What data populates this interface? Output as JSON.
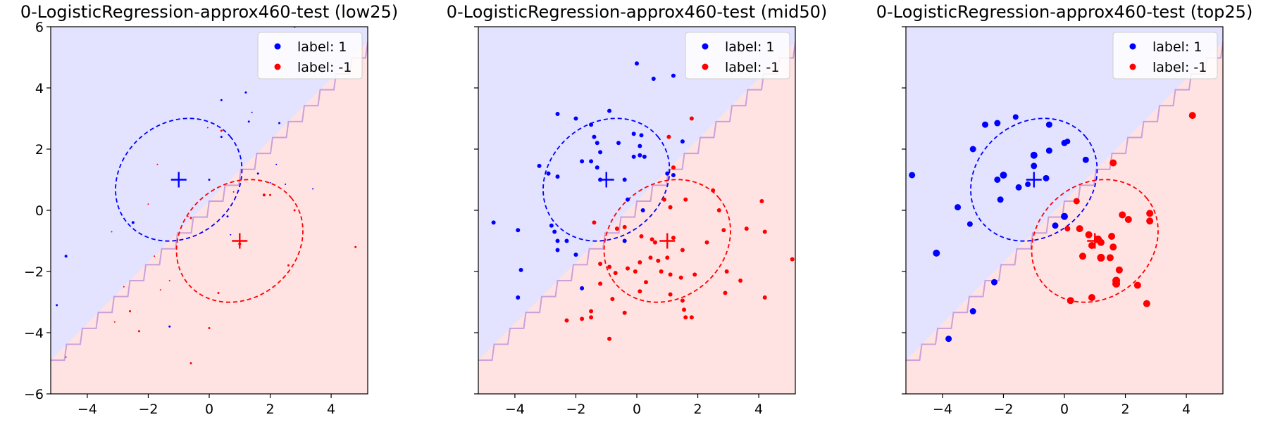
{
  "colors": {
    "positive": "#0000ff",
    "negative": "#ff0000",
    "positive_region": "#e3e3ff",
    "negative_region": "#ffe3e3",
    "boundary": "#c9a0dc"
  },
  "chart_data": [
    {
      "type": "scatter",
      "title": "0-LogisticRegression-approx460-test (low25)",
      "xlim": [
        -5.2,
        5.2
      ],
      "ylim": [
        -6,
        6
      ],
      "xticks": [
        "−4",
        "−2",
        "0",
        "2",
        "4"
      ],
      "yticks": [
        "−6",
        "−4",
        "−2",
        "0",
        "2",
        "4",
        "6"
      ],
      "legend": {
        "position": "top-right",
        "entries": [
          "label: 1",
          "label: -1"
        ]
      },
      "centers": [
        {
          "label": "1",
          "x": -1,
          "y": 1
        },
        {
          "label": "-1",
          "x": 1,
          "y": -1
        }
      ],
      "series": [
        {
          "name": "label: 1",
          "points": [
            [
              -2.5,
              -0.4,
              2
            ],
            [
              -4.7,
              -1.5,
              2
            ],
            [
              -5.0,
              -3.1,
              1.5
            ],
            [
              0.0,
              1.0,
              1.5
            ],
            [
              0.4,
              3.6,
              1.5
            ],
            [
              0.4,
              2.4,
              1.5
            ],
            [
              1.4,
              3.2,
              1
            ],
            [
              2.3,
              2.85,
              1.5
            ],
            [
              1.3,
              2.9,
              1.5
            ],
            [
              1.2,
              3.85,
              1.5
            ],
            [
              2.8,
              6.0,
              1.5
            ],
            [
              1.6,
              1.2,
              1.5
            ],
            [
              2.2,
              1.5,
              1
            ],
            [
              2.0,
              0.9,
              1
            ],
            [
              2.5,
              0.85,
              1
            ],
            [
              3.4,
              0.7,
              1
            ],
            [
              0.6,
              -0.2,
              1.5
            ],
            [
              -1.3,
              -3.8,
              1.5
            ],
            [
              1.0,
              -1.0,
              1.5
            ],
            [
              0.7,
              -0.8,
              1
            ]
          ]
        },
        {
          "name": "label: -1",
          "points": [
            [
              0.4,
              2.6,
              1.5
            ],
            [
              -0.05,
              2.7,
              1
            ],
            [
              -1.7,
              1.5,
              1
            ],
            [
              -2.0,
              0.2,
              1
            ],
            [
              -0.6,
              -0.25,
              1.5
            ],
            [
              -3.2,
              -0.7,
              1
            ],
            [
              -1.8,
              -1.5,
              1
            ],
            [
              -1.3,
              -2.3,
              1
            ],
            [
              -1.6,
              -2.6,
              1
            ],
            [
              -2.8,
              -2.5,
              1
            ],
            [
              -2.6,
              -3.3,
              1.5
            ],
            [
              -3.1,
              -3.65,
              1
            ],
            [
              -2.3,
              -3.95,
              1.5
            ],
            [
              -4.7,
              -4.8,
              1
            ],
            [
              -0.6,
              -5.0,
              1.5
            ],
            [
              0.0,
              -3.85,
              1.5
            ],
            [
              1.0,
              -1.1,
              2
            ],
            [
              1.8,
              0.5,
              2
            ],
            [
              2.0,
              0.5,
              1.5
            ],
            [
              2.8,
              0.0,
              1.5
            ],
            [
              0.8,
              0.6,
              1
            ],
            [
              2.6,
              -1.8,
              1.5
            ],
            [
              0.3,
              -2.7,
              1.5
            ],
            [
              4.8,
              -1.2,
              1.5
            ],
            [
              -0.7,
              -0.2,
              1
            ]
          ]
        }
      ]
    },
    {
      "type": "scatter",
      "title": "0-LogisticRegression-approx460-test (mid50)",
      "xlim": [
        -5.2,
        5.2
      ],
      "ylim": [
        -6,
        6
      ],
      "xticks": [
        "−4",
        "−2",
        "0",
        "2",
        "4"
      ],
      "yticks": [],
      "legend": {
        "position": "top-right",
        "entries": [
          "label: 1",
          "label: -1"
        ]
      },
      "centers": [
        {
          "label": "1",
          "x": -1,
          "y": 1
        },
        {
          "label": "-1",
          "x": 1,
          "y": -1
        }
      ],
      "series": [
        {
          "name": "label: 1",
          "points": [
            [
              0.0,
              4.8,
              3
            ],
            [
              0.55,
              4.3,
              3
            ],
            [
              1.2,
              4.4,
              3
            ],
            [
              -2.6,
              3.15,
              3
            ],
            [
              -0.9,
              3.25,
              3
            ],
            [
              -2.0,
              3.0,
              3
            ],
            [
              -1.5,
              2.8,
              3
            ],
            [
              -1.4,
              2.4,
              3
            ],
            [
              -1.3,
              2.2,
              3
            ],
            [
              -0.6,
              2.2,
              3
            ],
            [
              -0.1,
              2.5,
              3
            ],
            [
              0.15,
              2.45,
              3
            ],
            [
              0.1,
              2.1,
              3
            ],
            [
              1.5,
              2.25,
              3
            ],
            [
              -3.2,
              1.45,
              3
            ],
            [
              -2.9,
              1.2,
              3
            ],
            [
              -2.6,
              1.1,
              3
            ],
            [
              -1.8,
              1.6,
              3
            ],
            [
              -1.5,
              1.6,
              3
            ],
            [
              -1.2,
              1.9,
              3
            ],
            [
              -1.3,
              1.4,
              3
            ],
            [
              -0.1,
              1.75,
              3
            ],
            [
              0.1,
              1.8,
              3
            ],
            [
              0.25,
              1.75,
              3
            ],
            [
              -1.2,
              1.0,
              3
            ],
            [
              -0.4,
              1.0,
              3
            ],
            [
              1.0,
              1.2,
              3
            ],
            [
              1.2,
              1.15,
              3
            ],
            [
              -4.7,
              -0.4,
              3
            ],
            [
              -3.9,
              -0.65,
              3
            ],
            [
              -3.8,
              -1.95,
              3
            ],
            [
              -3.9,
              -2.85,
              3
            ],
            [
              -2.8,
              -0.5,
              3
            ],
            [
              -2.7,
              -0.7,
              3
            ],
            [
              -2.6,
              -1.0,
              3
            ],
            [
              -2.3,
              -1.0,
              3
            ],
            [
              -2.6,
              -1.3,
              3
            ],
            [
              -2.0,
              -1.45,
              3
            ],
            [
              -1.8,
              -2.55,
              3
            ],
            [
              -0.3,
              0.35,
              3
            ],
            [
              0.2,
              0.0,
              3
            ],
            [
              -0.4,
              -1.0,
              3
            ]
          ]
        },
        {
          "name": "label: -1",
          "points": [
            [
              1.05,
              2.4,
              3
            ],
            [
              1.8,
              3.0,
              3
            ],
            [
              1.2,
              1.4,
              3
            ],
            [
              2.5,
              0.65,
              3
            ],
            [
              1.6,
              0.35,
              3
            ],
            [
              0.9,
              0.35,
              3
            ],
            [
              2.7,
              0.0,
              3
            ],
            [
              1.1,
              0.1,
              3
            ],
            [
              4.1,
              0.3,
              3
            ],
            [
              4.2,
              -0.7,
              3
            ],
            [
              3.6,
              -0.6,
              3
            ],
            [
              2.85,
              -0.65,
              3
            ],
            [
              -0.4,
              -0.55,
              3
            ],
            [
              0.15,
              -0.85,
              3
            ],
            [
              0.5,
              -0.95,
              3
            ],
            [
              0.6,
              -1.05,
              3
            ],
            [
              1.2,
              -0.9,
              3
            ],
            [
              2.3,
              -1.05,
              3
            ],
            [
              1.5,
              -1.3,
              3
            ],
            [
              5.1,
              -1.6,
              3
            ],
            [
              -1.2,
              -1.75,
              3
            ],
            [
              -0.9,
              -1.85,
              3
            ],
            [
              -0.7,
              -2.05,
              3
            ],
            [
              -0.3,
              -1.9,
              3
            ],
            [
              0.1,
              -1.7,
              3
            ],
            [
              0.45,
              -1.55,
              3
            ],
            [
              0.7,
              -1.65,
              3
            ],
            [
              1.0,
              -1.55,
              3
            ],
            [
              -0.05,
              -2.0,
              3
            ],
            [
              0.3,
              -2.35,
              3
            ],
            [
              0.8,
              -2.0,
              3
            ],
            [
              1.1,
              -2.1,
              3
            ],
            [
              1.45,
              -2.2,
              3
            ],
            [
              1.9,
              -2.1,
              3
            ],
            [
              2.95,
              -2.0,
              3
            ],
            [
              3.4,
              -2.3,
              3
            ],
            [
              2.9,
              -2.7,
              3
            ],
            [
              -1.2,
              -2.4,
              3
            ],
            [
              -0.8,
              -2.9,
              3
            ],
            [
              0.1,
              -2.65,
              3
            ],
            [
              1.1,
              -2.75,
              3
            ],
            [
              1.5,
              -2.95,
              3
            ],
            [
              1.55,
              -3.25,
              3
            ],
            [
              -1.5,
              -3.3,
              3
            ],
            [
              -0.4,
              -3.35,
              3
            ],
            [
              -1.5,
              -3.5,
              3
            ],
            [
              -2.3,
              -3.6,
              3
            ],
            [
              -1.8,
              -3.55,
              3
            ],
            [
              1.6,
              -3.5,
              3
            ],
            [
              1.8,
              -3.5,
              3
            ],
            [
              -0.9,
              -4.2,
              3
            ],
            [
              4.2,
              -2.85,
              3
            ],
            [
              -1.4,
              -0.4,
              3
            ],
            [
              -0.65,
              -0.6,
              3
            ]
          ]
        }
      ]
    },
    {
      "type": "scatter",
      "title": "0-LogisticRegression-approx460-test (top25)",
      "xlim": [
        -5.2,
        5.2
      ],
      "ylim": [
        -6,
        6
      ],
      "xticks": [
        "−4",
        "−2",
        "0",
        "2",
        "4"
      ],
      "yticks": [],
      "legend": {
        "position": "top-right",
        "entries": [
          "label: 1",
          "label: -1"
        ]
      },
      "centers": [
        {
          "label": "1",
          "x": -1,
          "y": 1
        },
        {
          "label": "-1",
          "x": 1,
          "y": -1
        }
      ],
      "series": [
        {
          "name": "label: 1",
          "points": [
            [
              -5.0,
              1.15,
              4.5
            ],
            [
              -2.6,
              2.8,
              4.5
            ],
            [
              -2.2,
              2.85,
              4.5
            ],
            [
              -1.6,
              3.05,
              4
            ],
            [
              -0.5,
              2.8,
              4.5
            ],
            [
              -3.0,
              2.0,
              4.5
            ],
            [
              -1.0,
              1.8,
              5
            ],
            [
              -0.5,
              1.95,
              4.5
            ],
            [
              0.0,
              2.2,
              4.5
            ],
            [
              0.1,
              2.25,
              4
            ],
            [
              0.7,
              1.65,
              4.5
            ],
            [
              -2.0,
              1.15,
              5
            ],
            [
              -2.2,
              1.0,
              4.5
            ],
            [
              -1.5,
              0.75,
              4.5
            ],
            [
              -1.2,
              0.85,
              4
            ],
            [
              -1.0,
              1.45,
              4.5
            ],
            [
              -0.6,
              1.05,
              4.5
            ],
            [
              -2.1,
              0.35,
              4.5
            ],
            [
              -3.5,
              0.1,
              4.5
            ],
            [
              -3.1,
              -0.45,
              4
            ],
            [
              -0.3,
              -0.5,
              4.5
            ],
            [
              0.0,
              -0.2,
              5
            ],
            [
              -4.2,
              -1.4,
              5
            ],
            [
              -2.3,
              -2.35,
              4.5
            ],
            [
              -3.0,
              -3.3,
              4.5
            ],
            [
              -3.8,
              -4.2,
              4.5
            ]
          ]
        },
        {
          "name": "label: -1",
          "points": [
            [
              4.2,
              3.1,
              5
            ],
            [
              1.6,
              1.55,
              5
            ],
            [
              0.4,
              0.3,
              4.5
            ],
            [
              1.9,
              -0.15,
              5
            ],
            [
              2.1,
              -0.3,
              5
            ],
            [
              2.8,
              -0.1,
              5
            ],
            [
              2.8,
              -0.35,
              5
            ],
            [
              0.5,
              -0.6,
              5
            ],
            [
              0.8,
              -0.8,
              5
            ],
            [
              1.1,
              -0.95,
              5.5
            ],
            [
              1.55,
              -0.85,
              5
            ],
            [
              1.2,
              -1.05,
              5
            ],
            [
              1.6,
              -1.2,
              5
            ],
            [
              0.9,
              -1.15,
              5
            ],
            [
              1.5,
              -1.55,
              5
            ],
            [
              0.6,
              -1.5,
              5
            ],
            [
              1.2,
              -1.55,
              5.5
            ],
            [
              1.8,
              -1.95,
              5
            ],
            [
              2.4,
              -2.45,
              5
            ],
            [
              1.7,
              -2.3,
              5.5
            ],
            [
              1.7,
              -2.4,
              5.5
            ],
            [
              0.9,
              -2.85,
              5
            ],
            [
              0.2,
              -2.95,
              5
            ],
            [
              2.7,
              -3.05,
              5
            ],
            [
              0.1,
              -0.6,
              4
            ]
          ]
        }
      ]
    }
  ]
}
